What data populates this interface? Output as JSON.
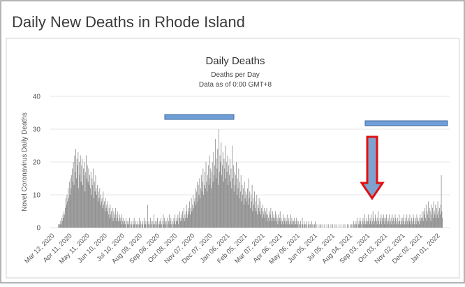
{
  "header": {
    "title": "Daily New Deaths in Rhode Island"
  },
  "chart_data": {
    "type": "bar",
    "title": "Daily Deaths",
    "subtitle": [
      "Deaths per Day",
      "Data as of 0:00 GMT+8"
    ],
    "y_label": "Novel Coronavirus Daily Deaths",
    "color": "#8c8c8c",
    "grid": true,
    "ylim": [
      0,
      40
    ],
    "yticks": [
      0,
      10,
      20,
      30,
      40
    ],
    "categories": [
      "Mar 12, 2020",
      null,
      null,
      null,
      null,
      null,
      null,
      null,
      null,
      null,
      null,
      null,
      null,
      null,
      null,
      null,
      null,
      null,
      null,
      null,
      null,
      null,
      null,
      null,
      null,
      null,
      null,
      null,
      null,
      null,
      "Apr 11, 2020",
      null,
      null,
      null,
      null,
      null,
      null,
      null,
      null,
      null,
      null,
      null,
      null,
      null,
      null,
      null,
      null,
      null,
      null,
      null,
      null,
      null,
      null,
      null,
      null,
      null,
      null,
      null,
      null,
      null,
      "May 11, 2020",
      null,
      null,
      null,
      null,
      null,
      null,
      null,
      null,
      null,
      null,
      null,
      null,
      null,
      null,
      null,
      null,
      null,
      null,
      null,
      null,
      null,
      null,
      null,
      null,
      null,
      null,
      null,
      null,
      null,
      "Jun 10, 2020",
      null,
      null,
      null,
      null,
      null,
      null,
      null,
      null,
      null,
      null,
      null,
      null,
      null,
      null,
      null,
      null,
      null,
      null,
      null,
      null,
      null,
      null,
      null,
      null,
      null,
      null,
      null,
      null,
      null,
      "Jul 10, 2020",
      null,
      null,
      null,
      null,
      null,
      null,
      null,
      null,
      null,
      null,
      null,
      null,
      null,
      null,
      null,
      null,
      null,
      null,
      null,
      null,
      null,
      null,
      null,
      null,
      null,
      null,
      null,
      null,
      null,
      "Aug 09, 2020",
      null,
      null,
      null,
      null,
      null,
      null,
      null,
      null,
      null,
      null,
      null,
      null,
      null,
      null,
      null,
      null,
      null,
      null,
      null,
      null,
      null,
      null,
      null,
      null,
      null,
      null,
      null,
      null,
      null,
      "Sep 08, 2020",
      null,
      null,
      null,
      null,
      null,
      null,
      null,
      null,
      null,
      null,
      null,
      null,
      null,
      null,
      null,
      null,
      null,
      null,
      null,
      null,
      null,
      null,
      null,
      null,
      null,
      null,
      null,
      null,
      null,
      "Oct 08, 2020",
      null,
      null,
      null,
      null,
      null,
      null,
      null,
      null,
      null,
      null,
      null,
      null,
      null,
      null,
      null,
      null,
      null,
      null,
      null,
      null,
      null,
      null,
      null,
      null,
      null,
      null,
      null,
      null,
      null,
      "Nov 07, 2020",
      null,
      null,
      null,
      null,
      null,
      null,
      null,
      null,
      null,
      null,
      null,
      null,
      null,
      null,
      null,
      null,
      null,
      null,
      null,
      null,
      null,
      null,
      null,
      null,
      null,
      null,
      null,
      null,
      null,
      "Dec 07, 2020",
      null,
      null,
      null,
      null,
      null,
      null,
      null,
      null,
      null,
      null,
      null,
      null,
      null,
      null,
      null,
      null,
      null,
      null,
      null,
      null,
      null,
      null,
      null,
      null,
      null,
      null,
      null,
      null,
      null,
      "Jan 06, 2021",
      null,
      null,
      null,
      null,
      null,
      null,
      null,
      null,
      null,
      null,
      null,
      null,
      null,
      null,
      null,
      null,
      null,
      null,
      null,
      null,
      null,
      null,
      null,
      null,
      null,
      null,
      null,
      null,
      null,
      "Feb 05, 2021",
      null,
      null,
      null,
      null,
      null,
      null,
      null,
      null,
      null,
      null,
      null,
      null,
      null,
      null,
      null,
      null,
      null,
      null,
      null,
      null,
      null,
      null,
      null,
      null,
      null,
      null,
      null,
      null,
      null,
      "Mar 07, 2021",
      null,
      null,
      null,
      null,
      null,
      null,
      null,
      null,
      null,
      null,
      null,
      null,
      null,
      null,
      null,
      null,
      null,
      null,
      null,
      null,
      null,
      null,
      null,
      null,
      null,
      null,
      null,
      null,
      null,
      "Apr 06, 2021",
      null,
      null,
      null,
      null,
      null,
      null,
      null,
      null,
      null,
      null,
      null,
      null,
      null,
      null,
      null,
      null,
      null,
      null,
      null,
      null,
      null,
      null,
      null,
      null,
      null,
      null,
      null,
      null,
      null,
      "May 06, 2021",
      null,
      null,
      null,
      null,
      null,
      null,
      null,
      null,
      null,
      null,
      null,
      null,
      null,
      null,
      null,
      null,
      null,
      null,
      null,
      null,
      null,
      null,
      null,
      null,
      null,
      null,
      null,
      null,
      null,
      "Jun 05, 2021",
      null,
      null,
      null,
      null,
      null,
      null,
      null,
      null,
      null,
      null,
      null,
      null,
      null,
      null,
      null,
      null,
      null,
      null,
      null,
      null,
      null,
      null,
      null,
      null,
      null,
      null,
      null,
      null,
      null,
      "Jul 05, 2021",
      null,
      null,
      null,
      null,
      null,
      null,
      null,
      null,
      null,
      null,
      null,
      null,
      null,
      null,
      null,
      null,
      null,
      null,
      null,
      null,
      null,
      null,
      null,
      null,
      null,
      null,
      null,
      null,
      null,
      "Aug 04, 2021",
      null,
      null,
      null,
      null,
      null,
      null,
      null,
      null,
      null,
      null,
      null,
      null,
      null,
      null,
      null,
      null,
      null,
      null,
      null,
      null,
      null,
      null,
      null,
      null,
      null,
      null,
      null,
      null,
      null,
      "Sep 03, 2021",
      null,
      null,
      null,
      null,
      null,
      null,
      null,
      null,
      null,
      null,
      null,
      null,
      null,
      null,
      null,
      null,
      null,
      null,
      null,
      null,
      null,
      null,
      null,
      null,
      null,
      null,
      null,
      null,
      null,
      "Oct 03, 2021",
      null,
      null,
      null,
      null,
      null,
      null,
      null,
      null,
      null,
      null,
      null,
      null,
      null,
      null,
      null,
      null,
      null,
      null,
      null,
      null,
      null,
      null,
      null,
      null,
      null,
      null,
      null,
      null,
      null,
      "Nov 02, 2021",
      null,
      null,
      null,
      null,
      null,
      null,
      null,
      null,
      null,
      null,
      null,
      null,
      null,
      null,
      null,
      null,
      null,
      null,
      null,
      null,
      null,
      null,
      null,
      null,
      null,
      null,
      null,
      null,
      null,
      "Dec 02, 2021",
      null,
      null,
      null,
      null,
      null,
      null,
      null,
      null,
      null,
      null,
      null,
      null,
      null,
      null,
      null,
      null,
      null,
      null,
      null,
      null,
      null,
      null,
      null,
      null,
      null,
      null,
      null,
      null,
      null,
      "Jan 01, 2022",
      null,
      null,
      null,
      null
    ],
    "values": [
      0,
      0,
      0,
      0,
      0,
      0,
      1,
      0,
      1,
      1,
      2,
      1,
      3,
      2,
      4,
      3,
      5,
      4,
      6,
      9,
      7,
      10,
      8,
      12,
      9,
      14,
      10,
      15,
      12,
      16,
      18,
      14,
      20,
      13,
      22,
      17,
      24,
      15,
      21,
      19,
      23,
      12,
      20,
      16,
      22,
      14,
      19,
      21,
      13,
      18,
      16,
      20,
      11,
      17,
      22,
      15,
      19,
      14,
      18,
      13,
      16,
      12,
      17,
      10,
      15,
      13,
      18,
      9,
      14,
      11,
      16,
      12,
      10,
      13,
      8,
      11,
      9,
      12,
      7,
      10,
      8,
      9,
      6,
      11,
      7,
      8,
      5,
      9,
      6,
      7,
      5,
      8,
      4,
      6,
      3,
      7,
      4,
      5,
      3,
      6,
      2,
      5,
      4,
      3,
      6,
      2,
      4,
      3,
      5,
      2,
      3,
      4,
      2,
      3,
      1,
      4,
      2,
      3,
      1,
      2,
      2,
      1,
      3,
      0,
      2,
      1,
      2,
      1,
      3,
      0,
      1,
      2,
      1,
      0,
      2,
      1,
      3,
      1,
      0,
      2,
      1,
      1,
      2,
      0,
      1,
      3,
      1,
      2,
      0,
      1,
      1,
      2,
      0,
      3,
      1,
      2,
      1,
      0,
      2,
      7,
      1,
      2,
      0,
      1,
      3,
      2,
      1,
      0,
      2,
      1,
      4,
      1,
      2,
      0,
      1,
      2,
      3,
      1,
      0,
      2,
      1,
      2,
      3,
      1,
      0,
      2,
      4,
      1,
      3,
      2,
      1,
      2,
      0,
      3,
      1,
      2,
      4,
      1,
      2,
      3,
      1,
      0,
      2,
      1,
      3,
      2,
      4,
      1,
      2,
      3,
      2,
      4,
      1,
      3,
      5,
      2,
      3,
      4,
      2,
      5,
      3,
      6,
      2,
      4,
      3,
      5,
      7,
      3,
      4,
      6,
      5,
      8,
      4,
      6,
      9,
      5,
      7,
      10,
      6,
      8,
      9,
      12,
      7,
      11,
      14,
      8,
      13,
      10,
      15,
      9,
      12,
      16,
      11,
      14,
      18,
      10,
      13,
      17,
      12,
      20,
      14,
      11,
      16,
      19,
      13,
      22,
      15,
      18,
      12,
      17,
      20,
      14,
      23,
      16,
      19,
      27,
      15,
      21,
      18,
      24,
      13,
      30,
      17,
      22,
      20,
      26,
      16,
      19,
      23,
      14,
      21,
      18,
      25,
      15,
      20,
      17,
      22,
      13,
      19,
      16,
      21,
      14,
      18,
      12,
      25,
      15,
      19,
      11,
      17,
      13,
      16,
      20,
      10,
      15,
      12,
      18,
      9,
      14,
      11,
      16,
      8,
      13,
      10,
      12,
      7,
      14,
      9,
      11,
      8,
      10,
      12,
      7,
      15,
      9,
      11,
      6,
      10,
      8,
      13,
      5,
      9,
      7,
      11,
      6,
      8,
      5,
      10,
      4,
      7,
      6,
      9,
      5,
      8,
      4,
      6,
      3,
      7,
      5,
      4,
      6,
      3,
      5,
      4,
      6,
      2,
      4,
      3,
      5,
      2,
      4,
      6,
      3,
      2,
      5,
      3,
      4,
      2,
      3,
      5,
      2,
      4,
      3,
      1,
      4,
      2,
      3,
      5,
      2,
      3,
      1,
      2,
      4,
      1,
      3,
      2,
      1,
      3,
      2,
      4,
      1,
      2,
      3,
      1,
      2,
      4,
      1,
      3,
      2,
      1,
      2,
      3,
      1,
      2,
      1,
      3,
      2,
      1,
      2,
      0,
      1,
      1,
      2,
      0,
      1,
      3,
      1,
      0,
      2,
      1,
      1,
      0,
      2,
      1,
      0,
      1,
      2,
      0,
      1,
      1,
      0,
      2,
      1,
      0,
      1,
      0,
      1,
      2,
      0,
      1,
      0,
      0,
      1,
      0,
      0,
      1,
      0,
      1,
      0,
      0,
      1,
      0,
      0,
      1,
      0,
      0,
      0,
      1,
      0,
      0,
      1,
      0,
      0,
      0,
      1,
      0,
      0,
      1,
      0,
      0,
      0,
      1,
      0,
      0,
      1,
      0,
      0,
      0,
      1,
      0,
      0,
      1,
      0,
      0,
      0,
      1,
      0,
      0,
      1,
      0,
      0,
      0,
      1,
      0,
      1,
      0,
      0,
      1,
      0,
      1,
      0,
      1,
      0,
      2,
      1,
      0,
      1,
      2,
      1,
      3,
      0,
      1,
      2,
      1,
      3,
      2,
      1,
      0,
      2,
      3,
      1,
      2,
      4,
      1,
      2,
      3,
      1,
      2,
      4,
      2,
      1,
      3,
      2,
      4,
      1,
      2,
      5,
      3,
      1,
      2,
      4,
      3,
      2,
      1,
      3,
      5,
      2,
      1,
      3,
      2,
      4,
      1,
      3,
      2,
      4,
      3,
      1,
      2,
      3,
      4,
      2,
      1,
      3,
      2,
      4,
      1,
      2,
      3,
      1,
      4,
      2,
      3,
      1,
      2,
      4,
      3,
      1,
      2,
      3,
      1,
      2,
      4,
      2,
      1,
      3,
      2,
      1,
      3,
      2,
      4,
      1,
      2,
      3,
      1,
      4,
      2,
      1,
      3,
      2,
      4,
      1,
      2,
      3,
      1,
      2,
      4,
      3,
      1,
      2,
      3,
      1,
      4,
      2,
      3,
      2,
      1,
      3,
      4,
      2,
      3,
      5,
      3,
      2,
      5,
      4,
      6,
      3,
      7,
      2,
      5,
      4,
      8,
      3,
      6,
      5,
      2,
      7,
      4,
      6,
      3,
      8,
      5,
      4,
      7,
      3,
      6,
      4,
      8,
      5,
      3,
      6,
      4,
      7,
      16,
      5,
      3
    ]
  }
}
